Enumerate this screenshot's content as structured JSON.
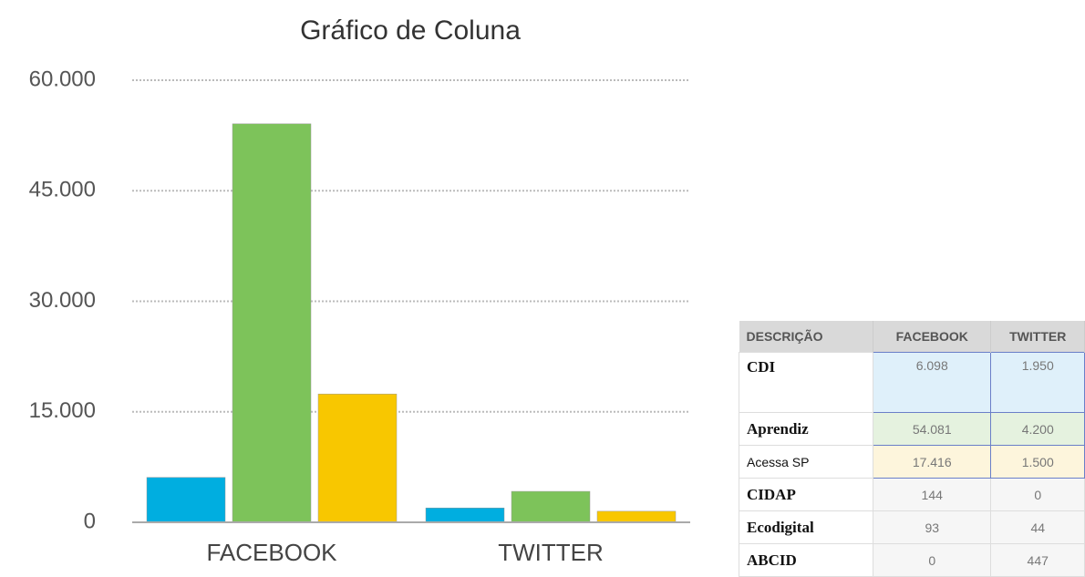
{
  "chart_data": {
    "type": "bar",
    "title": "Gráfico de Coluna",
    "categories": [
      "FACEBOOK",
      "TWITTER"
    ],
    "series": [
      {
        "color": "#00aee0",
        "values": [
          6098,
          1950
        ]
      },
      {
        "color": "#7dc35a",
        "values": [
          54081,
          4200
        ]
      },
      {
        "color": "#f8c700",
        "values": [
          17416,
          1500
        ]
      }
    ],
    "ylim": [
      0,
      60000
    ],
    "yticks": [
      0,
      {
        "value": 15000,
        "label": "15.000"
      },
      {
        "value": 30000,
        "label": "30.000"
      },
      {
        "value": 45000,
        "label": "45.000"
      },
      {
        "value": 60000,
        "label": "60.000"
      }
    ],
    "grid": true
  },
  "table": {
    "header": [
      "DESCRIÇÃO",
      "FACEBOOK",
      "TWITTER"
    ],
    "rows": [
      [
        "CDI",
        "6.098",
        "1.950"
      ],
      [
        "Aprendiz",
        "54.081",
        "4.200"
      ],
      [
        "Acessa SP",
        "17.416",
        "1.500"
      ],
      [
        "CIDAP",
        "144",
        "0"
      ],
      [
        "Ecodigital",
        "93",
        "44"
      ],
      [
        "ABCID",
        "0",
        "447"
      ]
    ]
  }
}
